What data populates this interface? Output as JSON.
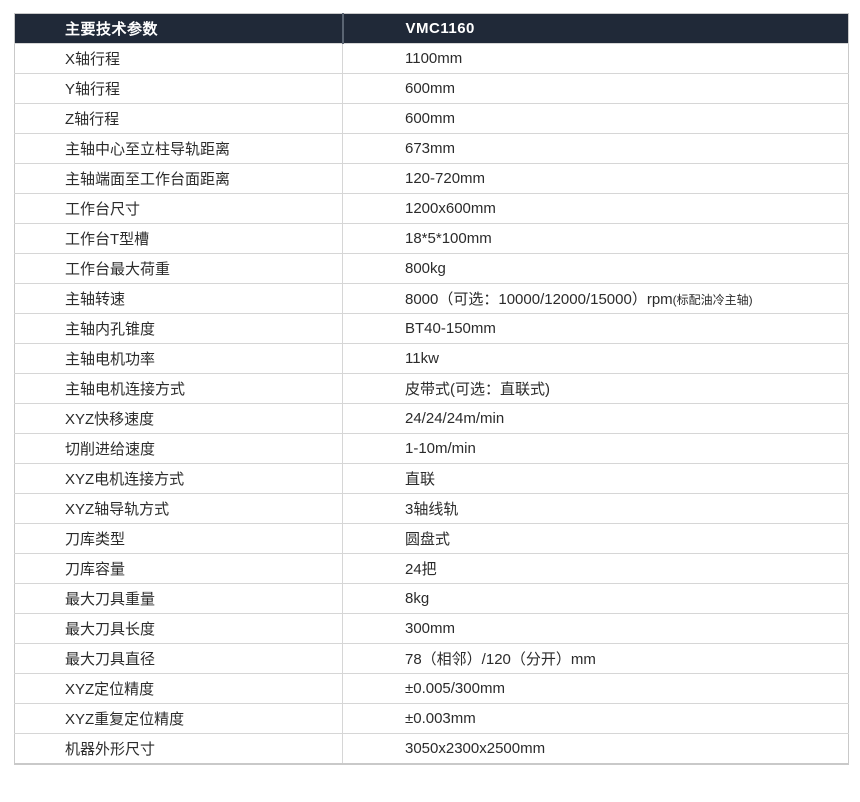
{
  "table": {
    "header": {
      "param_label": "主要技术参数",
      "model_label": "VMC1160"
    },
    "rows": [
      {
        "param": "X轴行程",
        "value": "1100mm"
      },
      {
        "param": "Y轴行程",
        "value": "600mm"
      },
      {
        "param": "Z轴行程",
        "value": "600mm"
      },
      {
        "param": "主轴中心至立柱导轨距离",
        "value": "673mm"
      },
      {
        "param": "主轴端面至工作台面距离",
        "value": "120-720mm"
      },
      {
        "param": "工作台尺寸",
        "value": "1200x600mm"
      },
      {
        "param": "工作台T型槽",
        "value": "18*5*100mm"
      },
      {
        "param": "工作台最大荷重",
        "value": "800kg"
      },
      {
        "param": "主轴转速",
        "value": "8000（可选：10000/12000/15000）rpm",
        "note": "(标配油冷主轴)"
      },
      {
        "param": "主轴内孔锥度",
        "value": "BT40-150mm"
      },
      {
        "param": "主轴电机功率",
        "value": "11kw"
      },
      {
        "param": "主轴电机连接方式",
        "value": "皮带式(可选：直联式)"
      },
      {
        "param": "XYZ快移速度",
        "value": "24/24/24m/min"
      },
      {
        "param": "切削进给速度",
        "value": "1-10m/min"
      },
      {
        "param": "XYZ电机连接方式",
        "value": "直联"
      },
      {
        "param": "XYZ轴导轨方式",
        "value": "3轴线轨"
      },
      {
        "param": "刀库类型",
        "value": "圆盘式"
      },
      {
        "param": "刀库容量",
        "value": "24把"
      },
      {
        "param": "最大刀具重量",
        "value": "8kg"
      },
      {
        "param": "最大刀具长度",
        "value": "300mm"
      },
      {
        "param": "最大刀具直径",
        "value": "78（相邻）/120（分开）mm"
      },
      {
        "param": "XYZ定位精度",
        "value": "±0.005/300mm"
      },
      {
        "param": "XYZ重复定位精度",
        "value": "±0.003mm"
      },
      {
        "param": "机器外形尺寸",
        "value": "3050x2300x2500mm"
      }
    ]
  },
  "colors": {
    "header_bg": "#202938",
    "header_text": "#ffffff",
    "header_divider": "#5a6472",
    "border": "#d6d6d6",
    "body_text": "#2b2b2b",
    "page_bg": "#ffffff"
  }
}
